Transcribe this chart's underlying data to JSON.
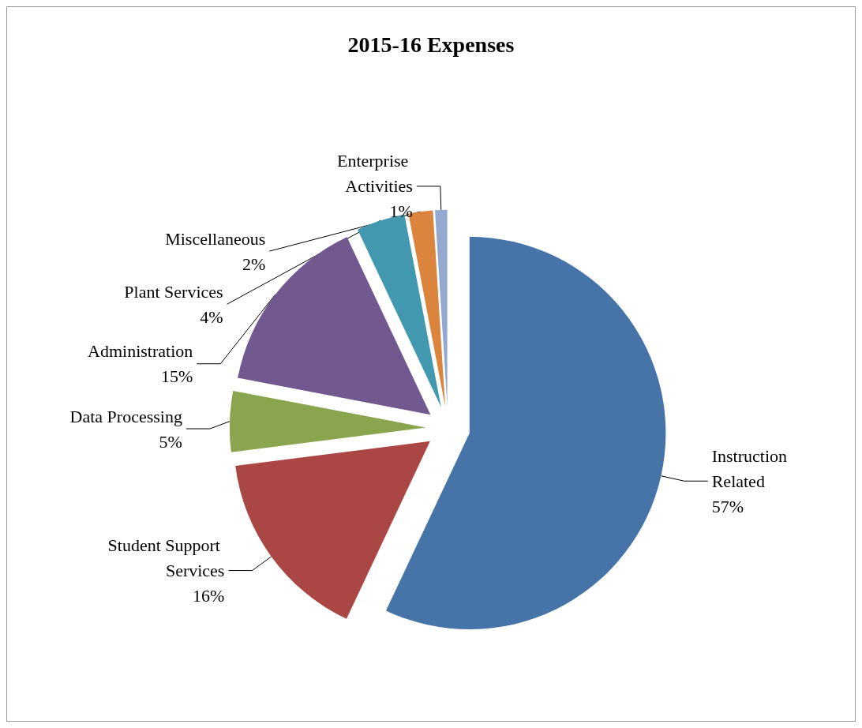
{
  "chart_data": {
    "type": "pie",
    "title": "2015-16 Expenses",
    "categories": [
      "Instruction Related",
      "Student Support Services",
      "Data Processing",
      "Administration",
      "Plant Services",
      "Miscellaneous",
      "Enterprise Activities"
    ],
    "values": [
      57,
      16,
      5,
      15,
      4,
      2,
      1
    ],
    "value_labels": [
      "57%",
      "16%",
      "5%",
      "15%",
      "4%",
      "2%",
      "1%"
    ],
    "colors": [
      "#4673a8",
      "#aa4643",
      "#89a54e",
      "#71588f",
      "#4198af",
      "#db843d",
      "#93a9cf"
    ],
    "legend": false
  }
}
